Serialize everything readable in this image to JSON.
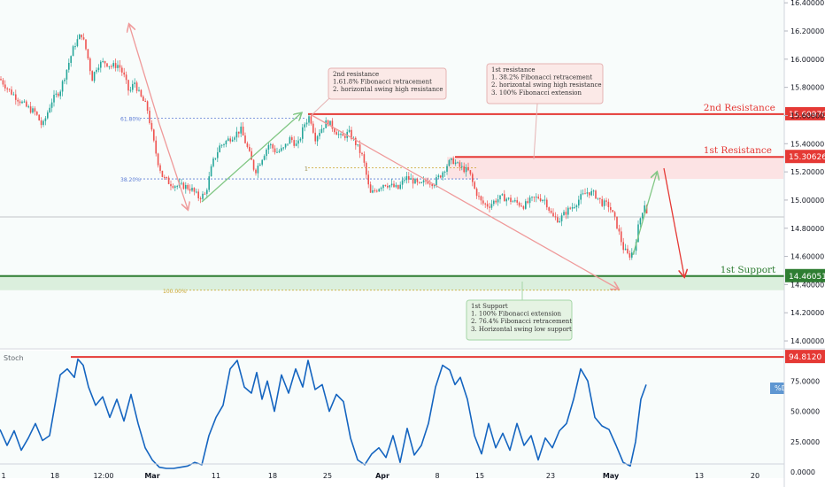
{
  "colors": {
    "background": "#ffffff",
    "page_tint": "#eaf6f4",
    "candle_up": "#26a69a",
    "candle_down": "#ef5350",
    "resistance": "#e53935",
    "support": "#2e7d32",
    "support_zone": "#c8e6c9",
    "resistance_zone": "#ffcdd2",
    "fib": "#5b7bd5",
    "stoch_line": "#1565c0",
    "arrow_pink": "#ef9a9a",
    "arrow_green": "#81c784",
    "axis_text": "#131722"
  },
  "chart_data": [
    {
      "type": "candlestick",
      "price_axis": {
        "ticks": [
          "16.40000",
          "16.20000",
          "16.00000",
          "15.80000",
          "15.60000",
          "15.40000",
          "15.20000",
          "15.00000",
          "14.80000",
          "14.60000",
          "14.40000",
          "14.20000",
          "14.00000"
        ],
        "ylim": [
          13.95,
          16.42
        ]
      },
      "time_axis": {
        "ticks": [
          "1",
          "18",
          "12:00",
          "Mar",
          "11",
          "18",
          "25",
          "Apr",
          "8",
          "15",
          "23",
          "May",
          "13",
          "20"
        ]
      },
      "levels": [
        {
          "label": "2nd Resistance",
          "value": "15.60970",
          "price": 15.6097
        },
        {
          "label": "1st Resistance",
          "value": "15.30626",
          "price": 15.30626
        },
        {
          "label": "1st Support",
          "value": "14.46051",
          "price": 14.46051
        }
      ],
      "fib_labels": [
        {
          "text": "61.80%",
          "price": 15.58
        },
        {
          "text": "38.20%",
          "price": 15.15
        },
        {
          "text": "100.00%",
          "price": 14.36
        },
        {
          "text": "1",
          "price": 15.23
        }
      ],
      "annotations": [
        {
          "key": "res2",
          "lines": [
            "2nd resistance",
            "1.61.8% Fibonacci retracement",
            "2. horizontal swing high resistance"
          ]
        },
        {
          "key": "res1",
          "lines": [
            "1st resistance",
            "1. 38.2% Fibonacci retracement",
            "2. horizontal swing high resistance",
            "3. 100% Fibonacci extension"
          ]
        },
        {
          "key": "sup1",
          "lines": [
            "1st Support",
            "1. 100% Fibonacci extension",
            "2. 76.4% Fibonacci retracement",
            "3. Horizontal swing low support"
          ]
        }
      ],
      "price_path": [
        [
          0,
          15.86
        ],
        [
          10,
          15.78
        ],
        [
          20,
          15.72
        ],
        [
          30,
          15.66
        ],
        [
          40,
          15.62
        ],
        [
          48,
          15.52
        ],
        [
          58,
          15.7
        ],
        [
          68,
          15.78
        ],
        [
          76,
          15.94
        ],
        [
          84,
          16.1
        ],
        [
          92,
          16.18
        ],
        [
          98,
          16.05
        ],
        [
          104,
          15.86
        ],
        [
          110,
          15.96
        ],
        [
          118,
          15.98
        ],
        [
          126,
          15.95
        ],
        [
          134,
          15.96
        ],
        [
          140,
          15.88
        ],
        [
          146,
          15.76
        ],
        [
          152,
          15.84
        ],
        [
          158,
          15.74
        ],
        [
          166,
          15.66
        ],
        [
          172,
          15.46
        ],
        [
          178,
          15.28
        ],
        [
          184,
          15.16
        ],
        [
          192,
          15.12
        ],
        [
          200,
          15.1
        ],
        [
          208,
          15.1
        ],
        [
          216,
          15.08
        ],
        [
          224,
          15.02
        ],
        [
          232,
          15.04
        ],
        [
          240,
          15.26
        ],
        [
          248,
          15.38
        ],
        [
          256,
          15.42
        ],
        [
          264,
          15.46
        ],
        [
          272,
          15.5
        ],
        [
          280,
          15.36
        ],
        [
          288,
          15.2
        ],
        [
          296,
          15.3
        ],
        [
          304,
          15.4
        ],
        [
          312,
          15.34
        ],
        [
          320,
          15.36
        ],
        [
          328,
          15.44
        ],
        [
          336,
          15.38
        ],
        [
          344,
          15.54
        ],
        [
          350,
          15.6
        ],
        [
          356,
          15.44
        ],
        [
          362,
          15.5
        ],
        [
          370,
          15.56
        ],
        [
          378,
          15.5
        ],
        [
          386,
          15.44
        ],
        [
          394,
          15.48
        ],
        [
          402,
          15.4
        ],
        [
          410,
          15.3
        ],
        [
          418,
          15.04
        ],
        [
          426,
          15.08
        ],
        [
          434,
          15.12
        ],
        [
          442,
          15.1
        ],
        [
          450,
          15.08
        ],
        [
          458,
          15.16
        ],
        [
          466,
          15.14
        ],
        [
          474,
          15.1
        ],
        [
          482,
          15.14
        ],
        [
          490,
          15.12
        ],
        [
          498,
          15.18
        ],
        [
          506,
          15.26
        ],
        [
          512,
          15.28
        ],
        [
          518,
          15.24
        ],
        [
          524,
          15.22
        ],
        [
          530,
          15.2
        ],
        [
          536,
          15.08
        ],
        [
          544,
          14.98
        ],
        [
          552,
          14.96
        ],
        [
          560,
          15.0
        ],
        [
          568,
          15.02
        ],
        [
          576,
          15.0
        ],
        [
          584,
          14.98
        ],
        [
          592,
          14.96
        ],
        [
          600,
          15.0
        ],
        [
          608,
          15.02
        ],
        [
          616,
          15.0
        ],
        [
          624,
          14.88
        ],
        [
          632,
          14.86
        ],
        [
          640,
          14.92
        ],
        [
          648,
          14.96
        ],
        [
          656,
          15.02
        ],
        [
          664,
          15.06
        ],
        [
          672,
          15.04
        ],
        [
          680,
          14.98
        ],
        [
          688,
          14.96
        ],
        [
          696,
          14.84
        ],
        [
          704,
          14.66
        ],
        [
          710,
          14.6
        ],
        [
          716,
          14.64
        ],
        [
          722,
          14.84
        ],
        [
          728,
          14.98
        ],
        [
          732,
          14.88
        ]
      ]
    },
    {
      "type": "line",
      "title": "Stoch",
      "series": [
        {
          "name": "%D"
        }
      ],
      "y_axis": {
        "ticks": [
          "75.0000",
          "50.0000",
          "25.0000",
          "0.0000"
        ],
        "ylim": [
          -5,
          100
        ]
      },
      "level": {
        "value": "94.8120",
        "number": 94.812
      },
      "x": [
        0,
        8,
        16,
        24,
        32,
        40,
        48,
        56,
        62,
        68,
        76,
        84,
        88,
        94,
        100,
        108,
        116,
        124,
        132,
        140,
        148,
        156,
        164,
        172,
        180,
        188,
        196,
        204,
        212,
        220,
        228,
        236,
        244,
        252,
        260,
        268,
        276,
        284,
        290,
        296,
        302,
        310,
        318,
        326,
        334,
        342,
        348,
        356,
        364,
        372,
        380,
        388,
        396,
        404,
        412,
        420,
        428,
        436,
        444,
        452,
        460,
        468,
        476,
        484,
        492,
        500,
        508,
        514,
        520,
        528,
        536,
        544,
        552,
        560,
        568,
        576,
        584,
        592,
        600,
        608,
        616,
        624,
        632,
        640,
        648,
        656,
        664,
        672,
        680,
        688,
        696,
        704,
        712,
        718,
        724,
        730
      ],
      "y": [
        35,
        22,
        34,
        18,
        28,
        40,
        26,
        30,
        55,
        80,
        85,
        78,
        93,
        88,
        70,
        55,
        62,
        45,
        60,
        42,
        64,
        40,
        20,
        10,
        4,
        3,
        3,
        4,
        5,
        8,
        6,
        30,
        45,
        55,
        85,
        92,
        70,
        65,
        82,
        60,
        75,
        50,
        80,
        65,
        85,
        70,
        92,
        68,
        72,
        50,
        64,
        58,
        28,
        10,
        6,
        15,
        20,
        12,
        30,
        8,
        36,
        14,
        22,
        40,
        70,
        88,
        84,
        72,
        78,
        60,
        30,
        15,
        40,
        20,
        32,
        18,
        40,
        22,
        30,
        10,
        28,
        20,
        34,
        40,
        60,
        85,
        75,
        45,
        38,
        35,
        22,
        8,
        5,
        25,
        60,
        72
      ]
    }
  ]
}
